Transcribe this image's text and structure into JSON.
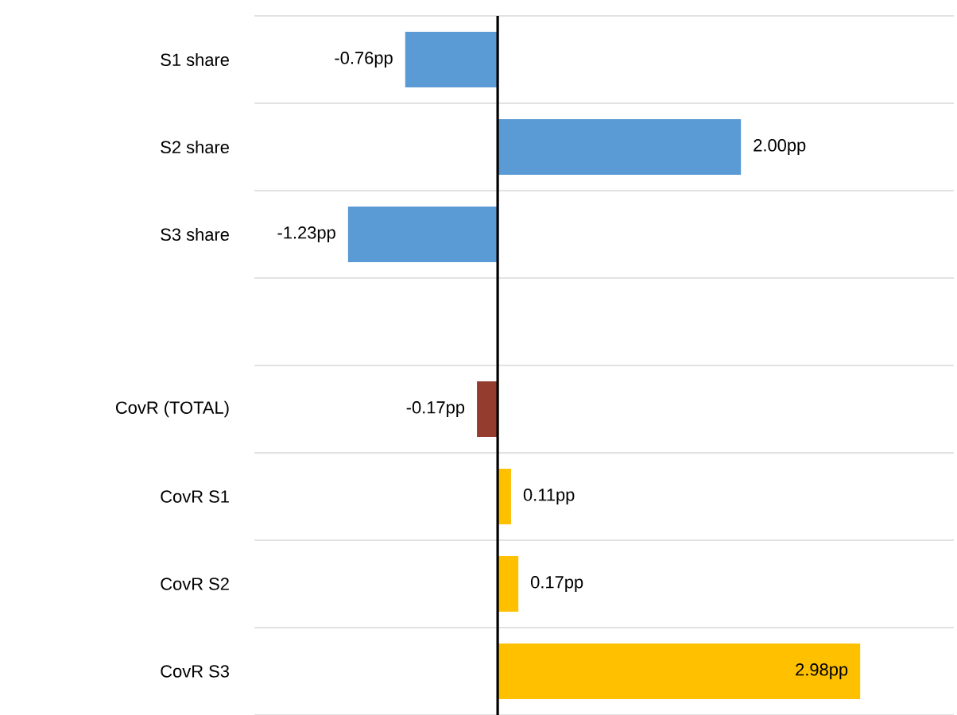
{
  "chart_data": {
    "type": "bar",
    "orientation": "horizontal",
    "categories": [
      "S1 share",
      "S2 share",
      "S3 share",
      null,
      "CovR (TOTAL)",
      "CovR S1",
      "CovR S2",
      "CovR S3"
    ],
    "values": [
      -0.76,
      2.0,
      -1.23,
      null,
      -0.17,
      0.11,
      0.17,
      2.98
    ],
    "colors": [
      "#5b9bd5",
      "#5b9bd5",
      "#5b9bd5",
      null,
      "#943c2e",
      "#ffc000",
      "#ffc000",
      "#ffc000"
    ],
    "value_labels": [
      "-0.76pp",
      "2.00pp",
      "-1.23pp",
      null,
      "-0.17pp",
      "0.11pp",
      "0.17pp",
      "2.98pp"
    ],
    "xlim": [
      -2,
      3.75
    ],
    "grid": "y",
    "tick_labels": "y"
  }
}
